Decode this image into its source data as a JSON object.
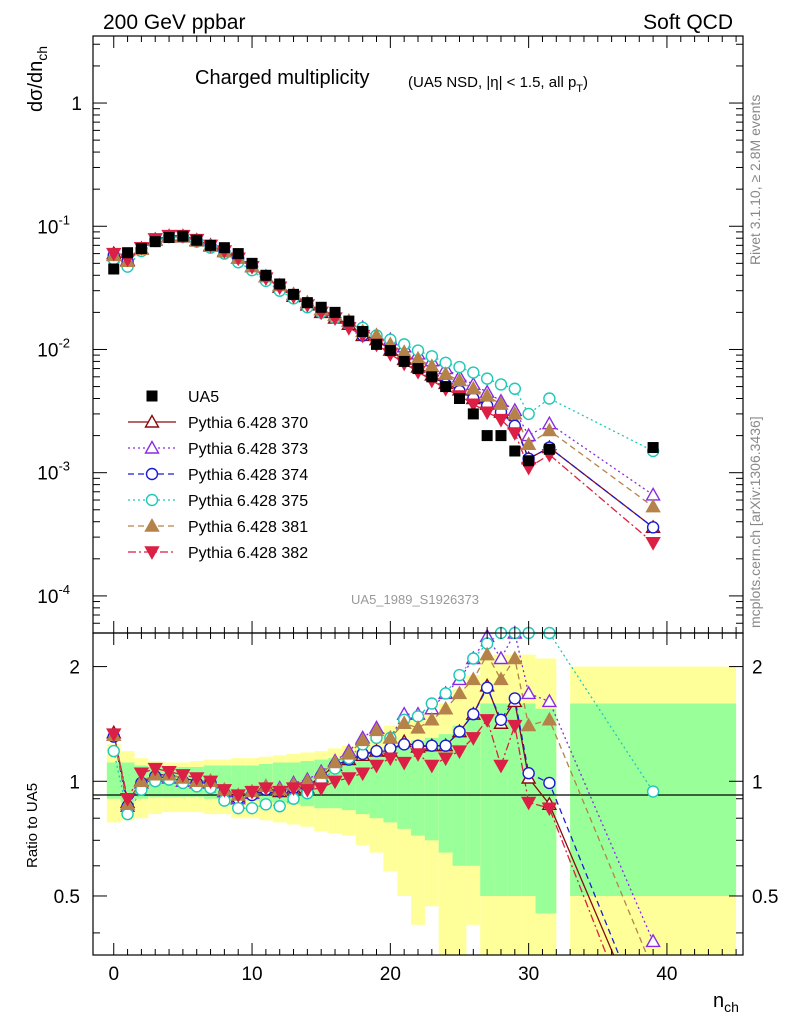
{
  "header": {
    "energy": "200 GeV ppbar",
    "process": "Soft QCD",
    "plot_title": "Charged multiplicity",
    "plot_subtitle": "(UA5 NSD, |η| < 1.5, all p",
    "plot_subtitle_sub": "T",
    "plot_subtitle_end": ")",
    "analysis_id": "UA5_1989_S1926373",
    "side_label_1": "Rivet 3.1.10, ≥ 2.8M events",
    "side_label_2": "mcplots.cern.ch [arXiv:1306.3436]"
  },
  "axes": {
    "ylabel_main": "dσ/dn",
    "ylabel_main_sub": "ch",
    "ylabel_ratio": "Ratio to UA5",
    "xlabel": "n",
    "xlabel_sub": "ch",
    "x_ticks": [
      0,
      10,
      20,
      30,
      40
    ],
    "main_y_ticks": [
      "10^-4",
      "10^-3",
      "10^-2",
      "10^-1",
      "1"
    ],
    "ratio_y_ticks": [
      "0.5",
      "1",
      "2"
    ]
  },
  "chart_data": {
    "type": "scatter",
    "x_range": [
      -1.5,
      45.5
    ],
    "main_y_log": true,
    "main_y_range": [
      5e-05,
      3.5
    ],
    "ratio_y_range": [
      0.35,
      2.45
    ],
    "legend_position": "left-middle",
    "data": {
      "name": "UA5",
      "x": [
        0,
        1,
        2,
        3,
        4,
        5,
        6,
        7,
        8,
        9,
        10,
        11,
        12,
        13,
        14,
        15,
        16,
        17,
        18,
        19,
        20,
        21,
        22,
        23,
        24,
        25,
        26,
        27,
        28,
        29,
        30,
        31.5,
        39
      ],
      "y": [
        0.045,
        0.061,
        0.066,
        0.075,
        0.081,
        0.083,
        0.077,
        0.07,
        0.067,
        0.06,
        0.05,
        0.04,
        0.034,
        0.028,
        0.024,
        0.022,
        0.02,
        0.017,
        0.014,
        0.011,
        0.0098,
        0.008,
        0.007,
        0.006,
        0.005,
        0.004,
        0.003,
        0.002,
        0.002,
        0.0015,
        0.00125,
        0.00155,
        0.0016
      ]
    },
    "bands": [
      {
        "x0": -0.5,
        "x1": 0.5,
        "yellow": [
          0.78,
          1.25
        ],
        "green": [
          0.9,
          1.12
        ]
      },
      {
        "x0": 0.5,
        "x1": 1.5,
        "yellow": [
          0.79,
          1.2
        ],
        "green": [
          0.88,
          1.12
        ]
      },
      {
        "x0": 1.5,
        "x1": 2.5,
        "yellow": [
          0.8,
          1.15
        ],
        "green": [
          0.9,
          1.1
        ]
      },
      {
        "x0": 2.5,
        "x1": 3.5,
        "yellow": [
          0.82,
          1.13
        ],
        "green": [
          0.91,
          1.09
        ]
      },
      {
        "x0": 3.5,
        "x1": 4.5,
        "yellow": [
          0.83,
          1.12
        ],
        "green": [
          0.91,
          1.09
        ]
      },
      {
        "x0": 4.5,
        "x1": 5.5,
        "yellow": [
          0.83,
          1.12
        ],
        "green": [
          0.91,
          1.09
        ]
      },
      {
        "x0": 5.5,
        "x1": 6.5,
        "yellow": [
          0.83,
          1.13
        ],
        "green": [
          0.91,
          1.09
        ]
      },
      {
        "x0": 6.5,
        "x1": 7.5,
        "yellow": [
          0.82,
          1.14
        ],
        "green": [
          0.9,
          1.1
        ]
      },
      {
        "x0": 7.5,
        "x1": 8.5,
        "yellow": [
          0.82,
          1.14
        ],
        "green": [
          0.9,
          1.1
        ]
      },
      {
        "x0": 8.5,
        "x1": 9.5,
        "yellow": [
          0.8,
          1.15
        ],
        "green": [
          0.89,
          1.1
        ]
      },
      {
        "x0": 9.5,
        "x1": 10.5,
        "yellow": [
          0.8,
          1.15
        ],
        "green": [
          0.89,
          1.1
        ]
      },
      {
        "x0": 10.5,
        "x1": 11.5,
        "yellow": [
          0.79,
          1.16
        ],
        "green": [
          0.88,
          1.11
        ]
      },
      {
        "x0": 11.5,
        "x1": 12.5,
        "yellow": [
          0.78,
          1.17
        ],
        "green": [
          0.88,
          1.12
        ]
      },
      {
        "x0": 12.5,
        "x1": 13.5,
        "yellow": [
          0.77,
          1.18
        ],
        "green": [
          0.87,
          1.12
        ]
      },
      {
        "x0": 13.5,
        "x1": 14.5,
        "yellow": [
          0.76,
          1.19
        ],
        "green": [
          0.86,
          1.13
        ]
      },
      {
        "x0": 14.5,
        "x1": 15.5,
        "yellow": [
          0.74,
          1.2
        ],
        "green": [
          0.85,
          1.14
        ]
      },
      {
        "x0": 15.5,
        "x1": 16.5,
        "yellow": [
          0.73,
          1.22
        ],
        "green": [
          0.85,
          1.15
        ]
      },
      {
        "x0": 16.5,
        "x1": 17.5,
        "yellow": [
          0.72,
          1.24
        ],
        "green": [
          0.84,
          1.16
        ]
      },
      {
        "x0": 17.5,
        "x1": 18.5,
        "yellow": [
          0.68,
          1.28
        ],
        "green": [
          0.82,
          1.17
        ]
      },
      {
        "x0": 18.5,
        "x1": 19.5,
        "yellow": [
          0.65,
          1.33
        ],
        "green": [
          0.8,
          1.2
        ]
      },
      {
        "x0": 19.5,
        "x1": 20.5,
        "yellow": [
          0.58,
          1.4
        ],
        "green": [
          0.78,
          1.23
        ]
      },
      {
        "x0": 20.5,
        "x1": 21.5,
        "yellow": [
          0.5,
          1.45
        ],
        "green": [
          0.75,
          1.25
        ]
      },
      {
        "x0": 21.5,
        "x1": 22.5,
        "yellow": [
          0.42,
          1.5
        ],
        "green": [
          0.72,
          1.28
        ]
      },
      {
        "x0": 22.5,
        "x1": 23.5,
        "yellow": [
          0.47,
          1.5
        ],
        "green": [
          0.7,
          1.3
        ]
      },
      {
        "x0": 23.5,
        "x1": 24.5,
        "yellow": [
          0.35,
          1.6
        ],
        "green": [
          0.65,
          1.33
        ]
      },
      {
        "x0": 24.5,
        "x1": 25.5,
        "yellow": [
          0.35,
          1.75
        ],
        "green": [
          0.6,
          1.4
        ]
      },
      {
        "x0": 25.5,
        "x1": 26.5,
        "yellow": [
          0.42,
          1.9
        ],
        "green": [
          0.6,
          1.45
        ]
      },
      {
        "x0": 26.5,
        "x1": 27.5,
        "yellow": [
          0.35,
          2.1
        ],
        "green": [
          0.5,
          1.6
        ]
      },
      {
        "x0": 27.5,
        "x1": 28.5,
        "yellow": [
          0.35,
          2.15
        ],
        "green": [
          0.5,
          1.6
        ]
      },
      {
        "x0": 28.5,
        "x1": 29.5,
        "yellow": [
          0.35,
          2.15
        ],
        "green": [
          0.5,
          1.6
        ]
      },
      {
        "x0": 29.5,
        "x1": 30.5,
        "yellow": [
          0.35,
          2.15
        ],
        "green": [
          0.5,
          1.6
        ]
      },
      {
        "x0": 30.5,
        "x1": 32.0,
        "yellow": [
          0.35,
          2.1
        ],
        "green": [
          0.45,
          1.55
        ]
      },
      {
        "x0": 33.0,
        "x1": 45.0,
        "yellow": [
          0.35,
          2.0
        ],
        "green": [
          0.5,
          1.6
        ]
      }
    ],
    "series": [
      {
        "name": "Pythia 6.428 370",
        "color": "#8b0a10",
        "marker": "triangle-up-open",
        "dash": "",
        "x": [
          0,
          1,
          2,
          3,
          4,
          5,
          6,
          7,
          8,
          9,
          10,
          11,
          12,
          13,
          14,
          15,
          16,
          17,
          18,
          19,
          20,
          21,
          22,
          23,
          24,
          25,
          26,
          27,
          28,
          29,
          30,
          31.5,
          39
        ],
        "y": [
          0.06,
          0.053,
          0.066,
          0.078,
          0.083,
          0.083,
          0.077,
          0.07,
          0.063,
          0.055,
          0.047,
          0.039,
          0.032,
          0.027,
          0.023,
          0.02,
          0.018,
          0.016,
          0.013,
          0.012,
          0.0099,
          0.0083,
          0.0072,
          0.0062,
          0.0053,
          0.0047,
          0.004,
          0.0036,
          0.0031,
          0.0025,
          0.0013,
          0.0016,
          0.00036
        ],
        "ratio": [
          1.34,
          0.88,
          1.0,
          1.04,
          1.04,
          1.02,
          1.0,
          1.0,
          0.94,
          0.91,
          0.93,
          0.96,
          0.94,
          0.96,
          0.96,
          1.03,
          1.1,
          1.14,
          1.17,
          1.2,
          1.2,
          1.27,
          1.23,
          1.24,
          1.24,
          1.35,
          1.5,
          1.78,
          1.42,
          1.62,
          1.02,
          0.87,
          0.2
        ]
      },
      {
        "name": "Pythia 6.428 373",
        "color": "#8a2be2",
        "marker": "triangle-up-open",
        "dash": "2,3",
        "x": [
          0,
          1,
          2,
          3,
          4,
          5,
          6,
          7,
          8,
          9,
          10,
          11,
          12,
          13,
          14,
          15,
          16,
          17,
          18,
          19,
          20,
          21,
          22,
          23,
          24,
          25,
          26,
          27,
          28,
          29,
          30,
          31.5,
          39
        ],
        "y": [
          0.058,
          0.052,
          0.065,
          0.077,
          0.082,
          0.082,
          0.076,
          0.069,
          0.062,
          0.055,
          0.047,
          0.039,
          0.033,
          0.028,
          0.024,
          0.021,
          0.019,
          0.017,
          0.015,
          0.013,
          0.012,
          0.0105,
          0.0092,
          0.0081,
          0.007,
          0.006,
          0.0052,
          0.0045,
          0.0038,
          0.0032,
          0.002,
          0.0025,
          0.00066
        ],
        "ratio": [
          1.32,
          0.86,
          0.99,
          1.03,
          1.02,
          1.0,
          0.99,
          0.99,
          0.94,
          0.9,
          0.93,
          0.97,
          0.96,
          0.99,
          1.01,
          1.06,
          1.13,
          1.2,
          1.3,
          1.38,
          1.3,
          1.5,
          1.5,
          1.55,
          1.7,
          1.85,
          2.1,
          2.4,
          2.1,
          2.45,
          1.7,
          1.62,
          0.38
        ]
      },
      {
        "name": "Pythia 6.428 374",
        "color": "#1c1cd4",
        "marker": "circle-open",
        "dash": "6,4",
        "x": [
          0,
          1,
          2,
          3,
          4,
          5,
          6,
          7,
          8,
          9,
          10,
          11,
          12,
          13,
          14,
          15,
          16,
          17,
          18,
          19,
          20,
          21,
          22,
          23,
          24,
          25,
          26,
          27,
          28,
          29,
          30,
          31.5,
          39
        ],
        "y": [
          0.058,
          0.052,
          0.065,
          0.077,
          0.082,
          0.082,
          0.076,
          0.069,
          0.062,
          0.055,
          0.047,
          0.039,
          0.032,
          0.027,
          0.023,
          0.02,
          0.018,
          0.016,
          0.013,
          0.012,
          0.0098,
          0.0082,
          0.0071,
          0.0061,
          0.0052,
          0.0046,
          0.004,
          0.0035,
          0.0031,
          0.0024,
          0.0013,
          0.0016,
          0.00036
        ],
        "ratio": [
          1.31,
          0.86,
          0.99,
          1.03,
          1.02,
          1.0,
          0.99,
          0.99,
          0.93,
          0.9,
          0.92,
          0.95,
          0.94,
          0.96,
          0.97,
          1.03,
          1.1,
          1.14,
          1.18,
          1.2,
          1.22,
          1.25,
          1.24,
          1.24,
          1.24,
          1.35,
          1.5,
          1.76,
          1.45,
          1.65,
          1.05,
          0.99,
          0.21
        ]
      },
      {
        "name": "Pythia 6.428 375",
        "color": "#1fc9b8",
        "marker": "circle-open",
        "dash": "2,3",
        "x": [
          0,
          1,
          2,
          3,
          4,
          5,
          6,
          7,
          8,
          9,
          10,
          11,
          12,
          13,
          14,
          15,
          16,
          17,
          18,
          19,
          20,
          21,
          22,
          23,
          24,
          25,
          26,
          27,
          28,
          29,
          30,
          31.5,
          39
        ],
        "y": [
          0.054,
          0.047,
          0.063,
          0.076,
          0.082,
          0.082,
          0.075,
          0.067,
          0.06,
          0.051,
          0.044,
          0.036,
          0.03,
          0.026,
          0.022,
          0.02,
          0.018,
          0.016,
          0.015,
          0.013,
          0.012,
          0.011,
          0.0098,
          0.0088,
          0.0078,
          0.0072,
          0.0065,
          0.0058,
          0.0052,
          0.0048,
          0.003,
          0.004,
          0.0015
        ],
        "ratio": [
          1.2,
          0.82,
          0.95,
          1.0,
          1.01,
          0.99,
          0.97,
          0.96,
          0.89,
          0.85,
          0.85,
          0.87,
          0.86,
          0.9,
          0.93,
          1.0,
          1.08,
          1.15,
          1.25,
          1.3,
          1.3,
          1.45,
          1.48,
          1.6,
          1.7,
          1.9,
          2.1,
          2.3,
          2.45,
          2.45,
          2.45,
          2.45,
          0.94
        ]
      },
      {
        "name": "Pythia 6.428 381",
        "color": "#b5834a",
        "marker": "triangle-up-filled",
        "dash": "6,4",
        "x": [
          0,
          1,
          2,
          3,
          4,
          5,
          6,
          7,
          8,
          9,
          10,
          11,
          12,
          13,
          14,
          15,
          16,
          17,
          18,
          19,
          20,
          21,
          22,
          23,
          24,
          25,
          26,
          27,
          28,
          29,
          30,
          31.5,
          39
        ],
        "y": [
          0.058,
          0.052,
          0.065,
          0.077,
          0.082,
          0.082,
          0.076,
          0.069,
          0.062,
          0.055,
          0.047,
          0.039,
          0.033,
          0.028,
          0.024,
          0.021,
          0.019,
          0.017,
          0.014,
          0.013,
          0.011,
          0.0095,
          0.0084,
          0.0073,
          0.0063,
          0.0056,
          0.0048,
          0.0042,
          0.0036,
          0.003,
          0.0017,
          0.0022,
          0.00053
        ],
        "ratio": [
          1.32,
          0.87,
          1.0,
          1.04,
          1.04,
          1.02,
          1.0,
          1.0,
          0.95,
          0.92,
          0.94,
          0.97,
          0.95,
          0.98,
          1.0,
          1.05,
          1.12,
          1.18,
          1.28,
          1.36,
          1.3,
          1.42,
          1.38,
          1.45,
          1.55,
          1.7,
          1.85,
          2.15,
          1.85,
          2.1,
          1.4,
          1.45,
          0.32
        ]
      },
      {
        "name": "Pythia 6.428 382",
        "color": "#dc1f44",
        "marker": "triangle-down-filled",
        "dash": "8,3,2,3",
        "x": [
          0,
          1,
          2,
          3,
          4,
          5,
          6,
          7,
          8,
          9,
          10,
          11,
          12,
          13,
          14,
          15,
          16,
          17,
          18,
          19,
          20,
          21,
          22,
          23,
          24,
          25,
          26,
          27,
          28,
          29,
          30,
          31.5,
          39
        ],
        "y": [
          0.06,
          0.054,
          0.067,
          0.079,
          0.084,
          0.084,
          0.078,
          0.07,
          0.063,
          0.055,
          0.047,
          0.038,
          0.032,
          0.027,
          0.023,
          0.02,
          0.018,
          0.015,
          0.013,
          0.011,
          0.0092,
          0.0077,
          0.0066,
          0.0056,
          0.0048,
          0.0042,
          0.0036,
          0.0031,
          0.0027,
          0.0021,
          0.0011,
          0.0014,
          0.00027
        ],
        "ratio": [
          1.33,
          0.9,
          1.05,
          1.08,
          1.06,
          1.04,
          1.02,
          1.0,
          0.95,
          0.92,
          0.94,
          0.96,
          0.94,
          0.96,
          0.95,
          0.96,
          1.0,
          1.02,
          1.05,
          1.1,
          1.15,
          1.12,
          1.18,
          1.1,
          1.15,
          1.2,
          1.3,
          1.45,
          1.1,
          1.4,
          0.88,
          0.85,
          0.17
        ]
      }
    ]
  }
}
